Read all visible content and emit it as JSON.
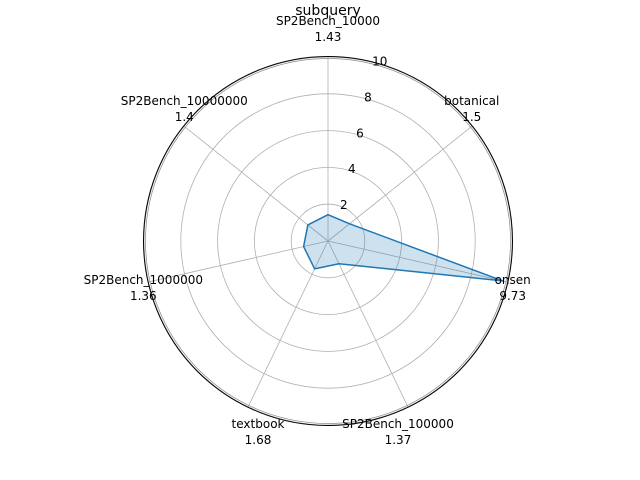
{
  "chart_data": {
    "type": "radar",
    "title": "subquery",
    "categories": [
      "SP2Bench_10000",
      "botanical",
      "onsen",
      "SP2Bench_100000",
      "textbook",
      "SP2Bench_1000000",
      "SP2Bench_10000000"
    ],
    "value_labels": [
      "1.43",
      "1.5",
      "9.73",
      "1.37",
      "1.68",
      "1.36",
      "1.4"
    ],
    "values": [
      1.43,
      1.5,
      9.73,
      1.37,
      1.68,
      1.36,
      1.4
    ],
    "rlim": [
      0,
      10
    ],
    "rticks": [
      2,
      4,
      6,
      8,
      10
    ],
    "grid": true,
    "colors": {
      "line": "#1f77b4",
      "fill": "#1f77b4",
      "grid": "#b0b0b0",
      "frame": "#000000"
    }
  }
}
